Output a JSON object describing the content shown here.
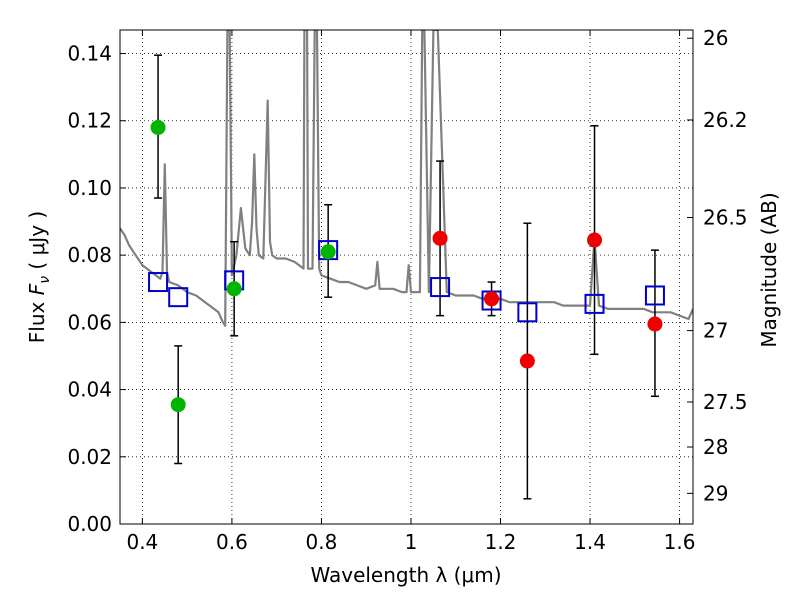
{
  "chart_data": {
    "type": "scatter",
    "xlabel": "Wavelength  λ (μm)",
    "ylabel": "Flux  F_ν  ( μJy )",
    "ylabel_parts": {
      "prefix": "Flux  ",
      "symbol": "F",
      "subscript": "ν",
      "suffix": "  ( μJy )"
    },
    "y2label": "Magnitude (AB)",
    "xlim": [
      0.35,
      1.63
    ],
    "ylim": [
      0.0,
      0.147
    ],
    "grid": true,
    "x_ticks": [
      0.4,
      0.6,
      0.8,
      1.0,
      1.2,
      1.4,
      1.6
    ],
    "x_tick_labels": [
      "0.4",
      "0.6",
      "0.8",
      "1",
      "1.2",
      "1.4",
      "1.6"
    ],
    "y_ticks": [
      0.0,
      0.02,
      0.04,
      0.06,
      0.08,
      0.1,
      0.12,
      0.14
    ],
    "y_tick_labels": [
      "0.00",
      "0.02",
      "0.04",
      "0.06",
      "0.08",
      "0.10",
      "0.12",
      "0.14"
    ],
    "y2_ticks": [
      26,
      26.2,
      26.5,
      27,
      27.5,
      28,
      29
    ],
    "y2_tick_labels": [
      "26",
      "26.2",
      "26.5",
      "27",
      "27.5",
      "28",
      "29"
    ],
    "colors": {
      "green": "#00b400",
      "red": "#ee0000",
      "model_box": "#0000cc",
      "spectrum": "#808080",
      "errorbar": "#000000"
    },
    "series": [
      {
        "name": "spectrum",
        "kind": "line",
        "x": [
          0.35,
          0.36,
          0.37,
          0.38,
          0.39,
          0.4,
          0.41,
          0.42,
          0.43,
          0.44,
          0.445,
          0.45,
          0.455,
          0.46,
          0.48,
          0.5,
          0.52,
          0.54,
          0.56,
          0.57,
          0.58,
          0.585,
          0.59,
          0.595,
          0.6,
          0.61,
          0.62,
          0.63,
          0.64,
          0.645,
          0.65,
          0.655,
          0.66,
          0.67,
          0.68,
          0.685,
          0.69,
          0.7,
          0.72,
          0.74,
          0.75,
          0.76,
          0.762,
          0.765,
          0.768,
          0.77,
          0.78,
          0.785,
          0.79,
          0.795,
          0.8,
          0.82,
          0.84,
          0.86,
          0.88,
          0.9,
          0.92,
          0.925,
          0.93,
          0.94,
          0.96,
          0.98,
          0.99,
          0.995,
          1.0,
          1.02,
          1.025,
          1.03,
          1.04,
          1.05,
          1.06,
          1.08,
          1.1,
          1.12,
          1.14,
          1.16,
          1.18,
          1.2,
          1.22,
          1.24,
          1.26,
          1.28,
          1.3,
          1.32,
          1.34,
          1.36,
          1.38,
          1.4,
          1.41,
          1.42,
          1.44,
          1.46,
          1.48,
          1.5,
          1.52,
          1.54,
          1.56,
          1.58,
          1.6,
          1.62,
          1.63
        ],
        "y": [
          0.088,
          0.086,
          0.083,
          0.081,
          0.079,
          0.077,
          0.076,
          0.075,
          0.074,
          0.073,
          0.075,
          0.107,
          0.075,
          0.072,
          0.071,
          0.069,
          0.068,
          0.066,
          0.064,
          0.063,
          0.06,
          0.059,
          0.147,
          0.147,
          0.074,
          0.08,
          0.094,
          0.082,
          0.08,
          0.09,
          0.11,
          0.088,
          0.08,
          0.079,
          0.126,
          0.084,
          0.08,
          0.079,
          0.079,
          0.078,
          0.077,
          0.076,
          0.147,
          0.147,
          0.147,
          0.076,
          0.076,
          0.147,
          0.147,
          0.076,
          0.074,
          0.073,
          0.072,
          0.072,
          0.071,
          0.07,
          0.071,
          0.078,
          0.07,
          0.07,
          0.07,
          0.069,
          0.069,
          0.077,
          0.069,
          0.069,
          0.147,
          0.147,
          0.069,
          0.147,
          0.147,
          0.069,
          0.068,
          0.068,
          0.068,
          0.067,
          0.067,
          0.067,
          0.066,
          0.066,
          0.066,
          0.066,
          0.066,
          0.066,
          0.065,
          0.065,
          0.065,
          0.065,
          0.085,
          0.065,
          0.064,
          0.064,
          0.064,
          0.064,
          0.064,
          0.063,
          0.063,
          0.063,
          0.062,
          0.061,
          0.064
        ]
      },
      {
        "name": "green_observed",
        "kind": "errorbar",
        "color_key": "green",
        "x": [
          0.435,
          0.48,
          0.605,
          0.815
        ],
        "y": [
          0.118,
          0.0355,
          0.07,
          0.081
        ],
        "yerr_low": [
          0.097,
          0.018,
          0.056,
          0.0675
        ],
        "yerr_high": [
          0.1395,
          0.053,
          0.084,
          0.095
        ]
      },
      {
        "name": "red_observed",
        "kind": "errorbar",
        "color_key": "red",
        "x": [
          1.065,
          1.18,
          1.26,
          1.41,
          1.545
        ],
        "y": [
          0.085,
          0.067,
          0.0485,
          0.0845,
          0.0595
        ],
        "yerr_low": [
          0.062,
          0.062,
          0.0075,
          0.0505,
          0.038
        ],
        "yerr_high": [
          0.108,
          0.072,
          0.0895,
          0.1185,
          0.0815
        ]
      },
      {
        "name": "model_photometry",
        "kind": "open_square",
        "color_key": "model_box",
        "x": [
          0.435,
          0.48,
          0.605,
          0.815,
          1.065,
          1.18,
          1.26,
          1.41,
          1.545
        ],
        "y": [
          0.072,
          0.0675,
          0.0725,
          0.0815,
          0.0705,
          0.0665,
          0.063,
          0.0655,
          0.068
        ]
      }
    ]
  }
}
